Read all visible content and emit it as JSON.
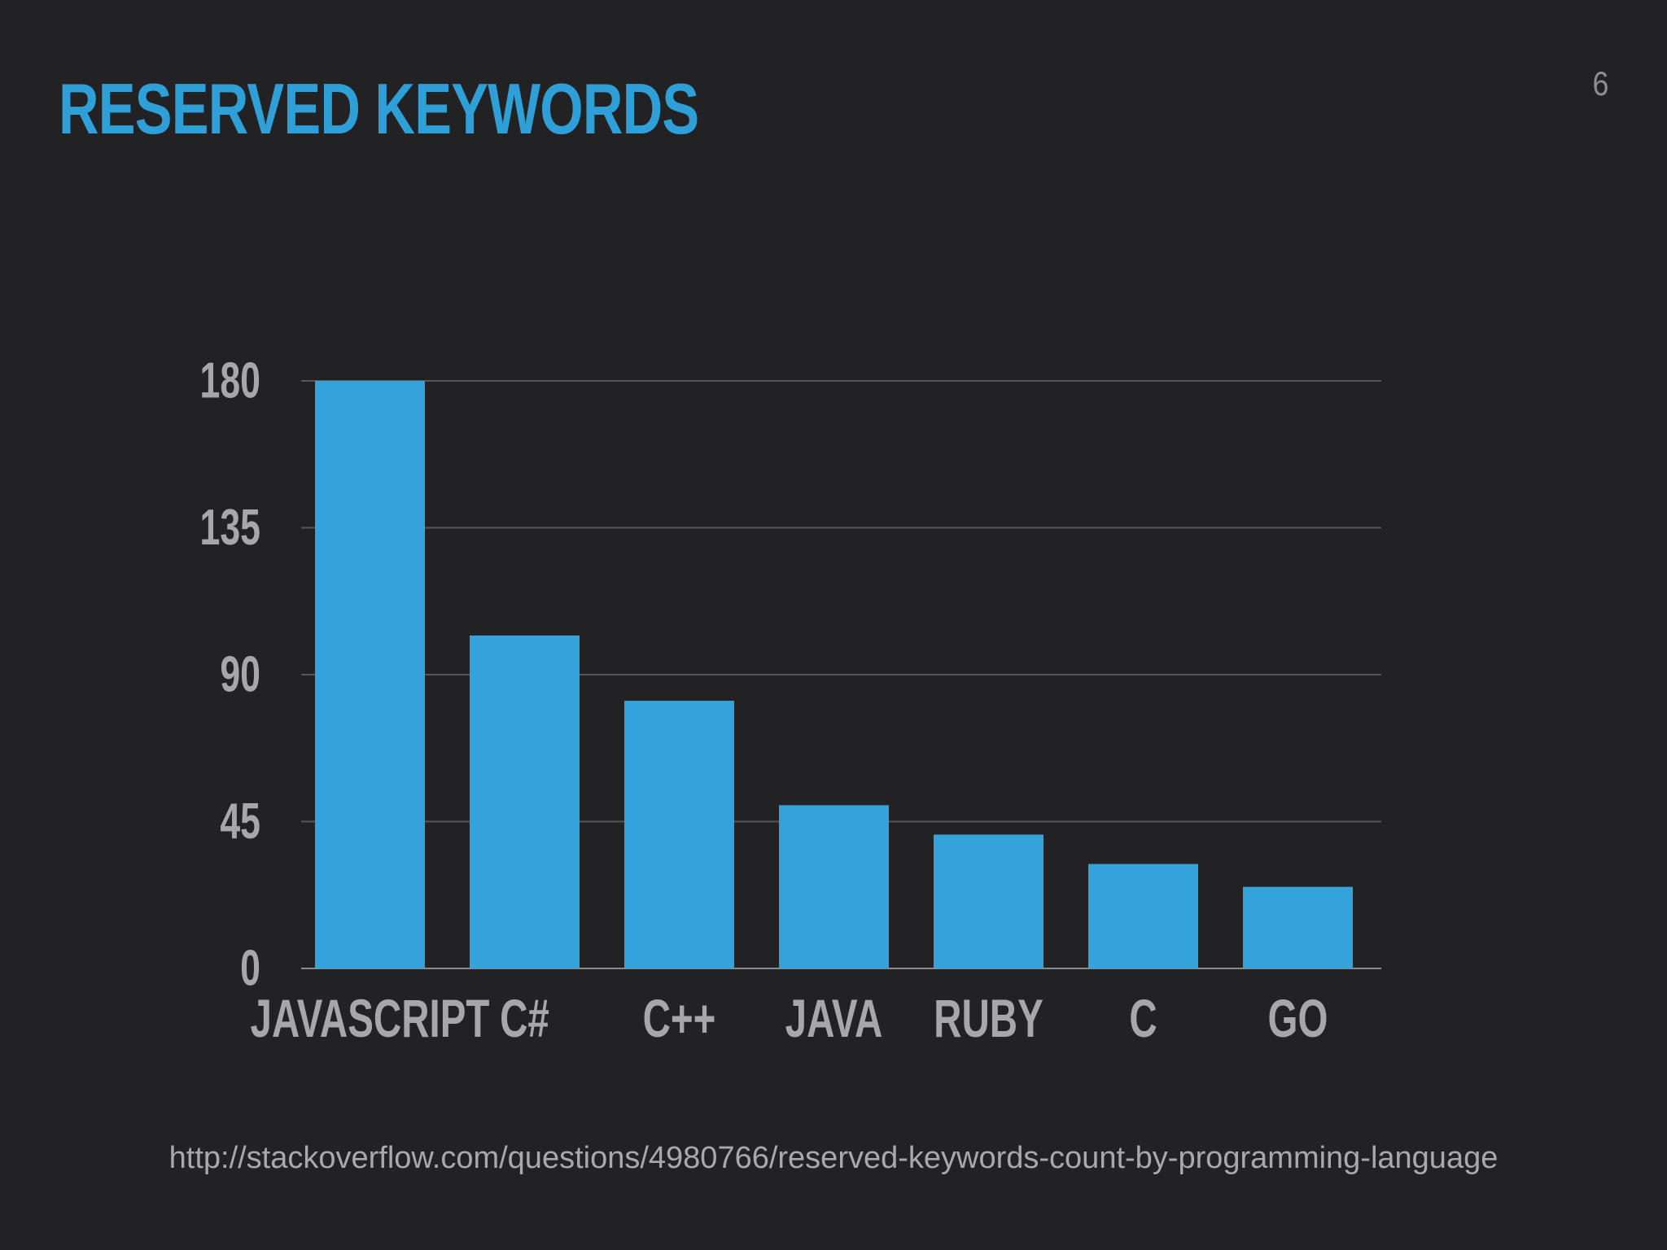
{
  "slide": {
    "title": "RESERVED KEYWORDS",
    "page_number": "6",
    "source_url": "http://stackoverflow.com/questions/4980766/reserved-keywords-count-by-programming-language"
  },
  "colors": {
    "background": "#222224",
    "title": "#2f9fd8",
    "bar": "#34a3dc",
    "axis_text": "#a7a7a9",
    "gridline": "#55565a"
  },
  "chart_data": {
    "type": "bar",
    "title": "",
    "xlabel": "",
    "ylabel": "",
    "categories": [
      "JAVASCRIPT",
      "C#",
      "C++",
      "JAVA",
      "RUBY",
      "C",
      "GO"
    ],
    "values": [
      180,
      102,
      82,
      50,
      41,
      32,
      25
    ],
    "yticks": [
      0,
      45,
      90,
      135,
      180
    ],
    "ylim": [
      0,
      180
    ],
    "grid": true,
    "legend": "none"
  }
}
